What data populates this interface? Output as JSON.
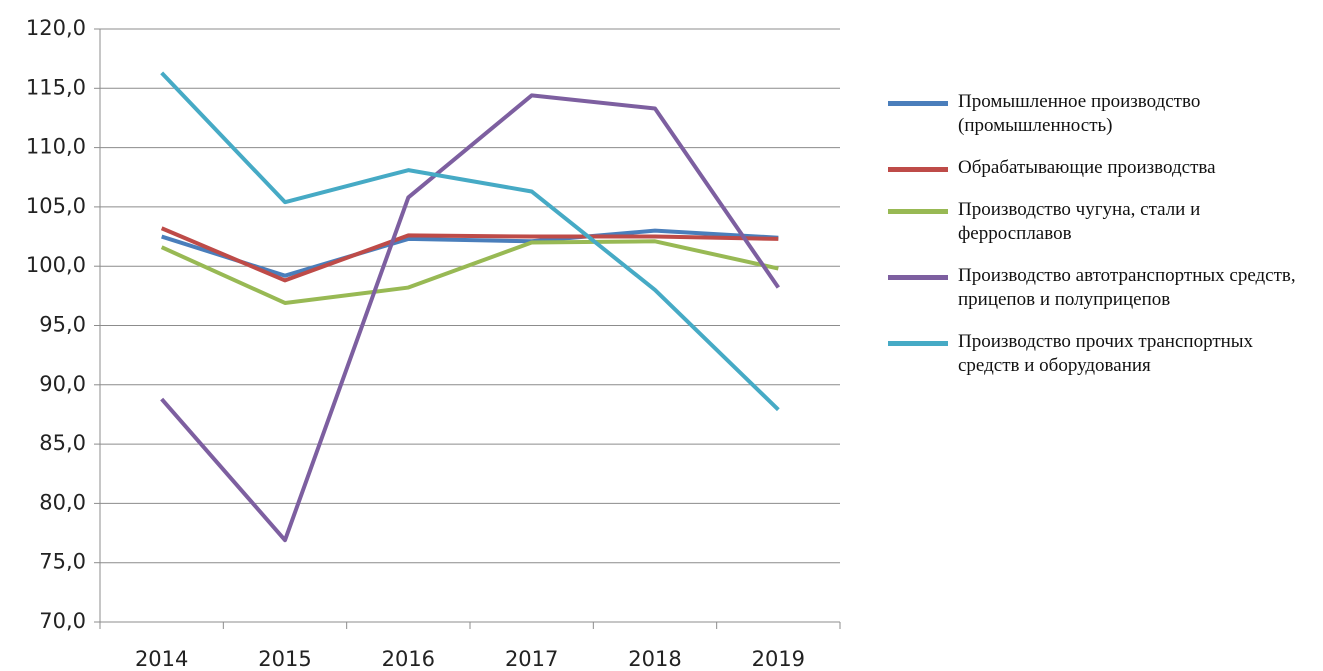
{
  "chart_data": {
    "type": "line",
    "categories": [
      "2014",
      "2015",
      "2016",
      "2017",
      "2018",
      "2019"
    ],
    "series": [
      {
        "name": "Промышленное производство (промышленность)",
        "color": "#4a7ebb",
        "values": [
          102.5,
          99.2,
          102.3,
          102.1,
          103.0,
          102.4
        ]
      },
      {
        "name": "Обрабатывающие производства",
        "color": "#be4b48",
        "values": [
          103.2,
          98.8,
          102.6,
          102.5,
          102.5,
          102.3
        ]
      },
      {
        "name": "Производство чугуна, стали и ферросплавов",
        "color": "#98b954",
        "values": [
          101.6,
          96.9,
          98.2,
          102.0,
          102.1,
          99.8
        ]
      },
      {
        "name": "Производство автотранспортных средств, прицепов и полуприцепов",
        "color": "#7d5fa0",
        "values": [
          88.8,
          76.9,
          105.8,
          114.4,
          113.3,
          98.2
        ]
      },
      {
        "name": "Производство прочих транспортных средств и оборудования",
        "color": "#46aac5",
        "values": [
          116.3,
          105.4,
          108.1,
          106.3,
          98.0,
          87.9
        ]
      }
    ],
    "ylim": [
      70,
      120
    ],
    "yticks": [
      {
        "value": 70,
        "label": "70,0"
      },
      {
        "value": 75,
        "label": "75,0"
      },
      {
        "value": 80,
        "label": "80,0"
      },
      {
        "value": 85,
        "label": "85,0"
      },
      {
        "value": 90,
        "label": "90,0"
      },
      {
        "value": 95,
        "label": "95,0"
      },
      {
        "value": 100,
        "label": "100,0"
      },
      {
        "value": 105,
        "label": "105,0"
      },
      {
        "value": 110,
        "label": "110,0"
      },
      {
        "value": 115,
        "label": "115,0"
      },
      {
        "value": 120,
        "label": "120,0"
      }
    ],
    "grid": true,
    "legend": "right"
  }
}
